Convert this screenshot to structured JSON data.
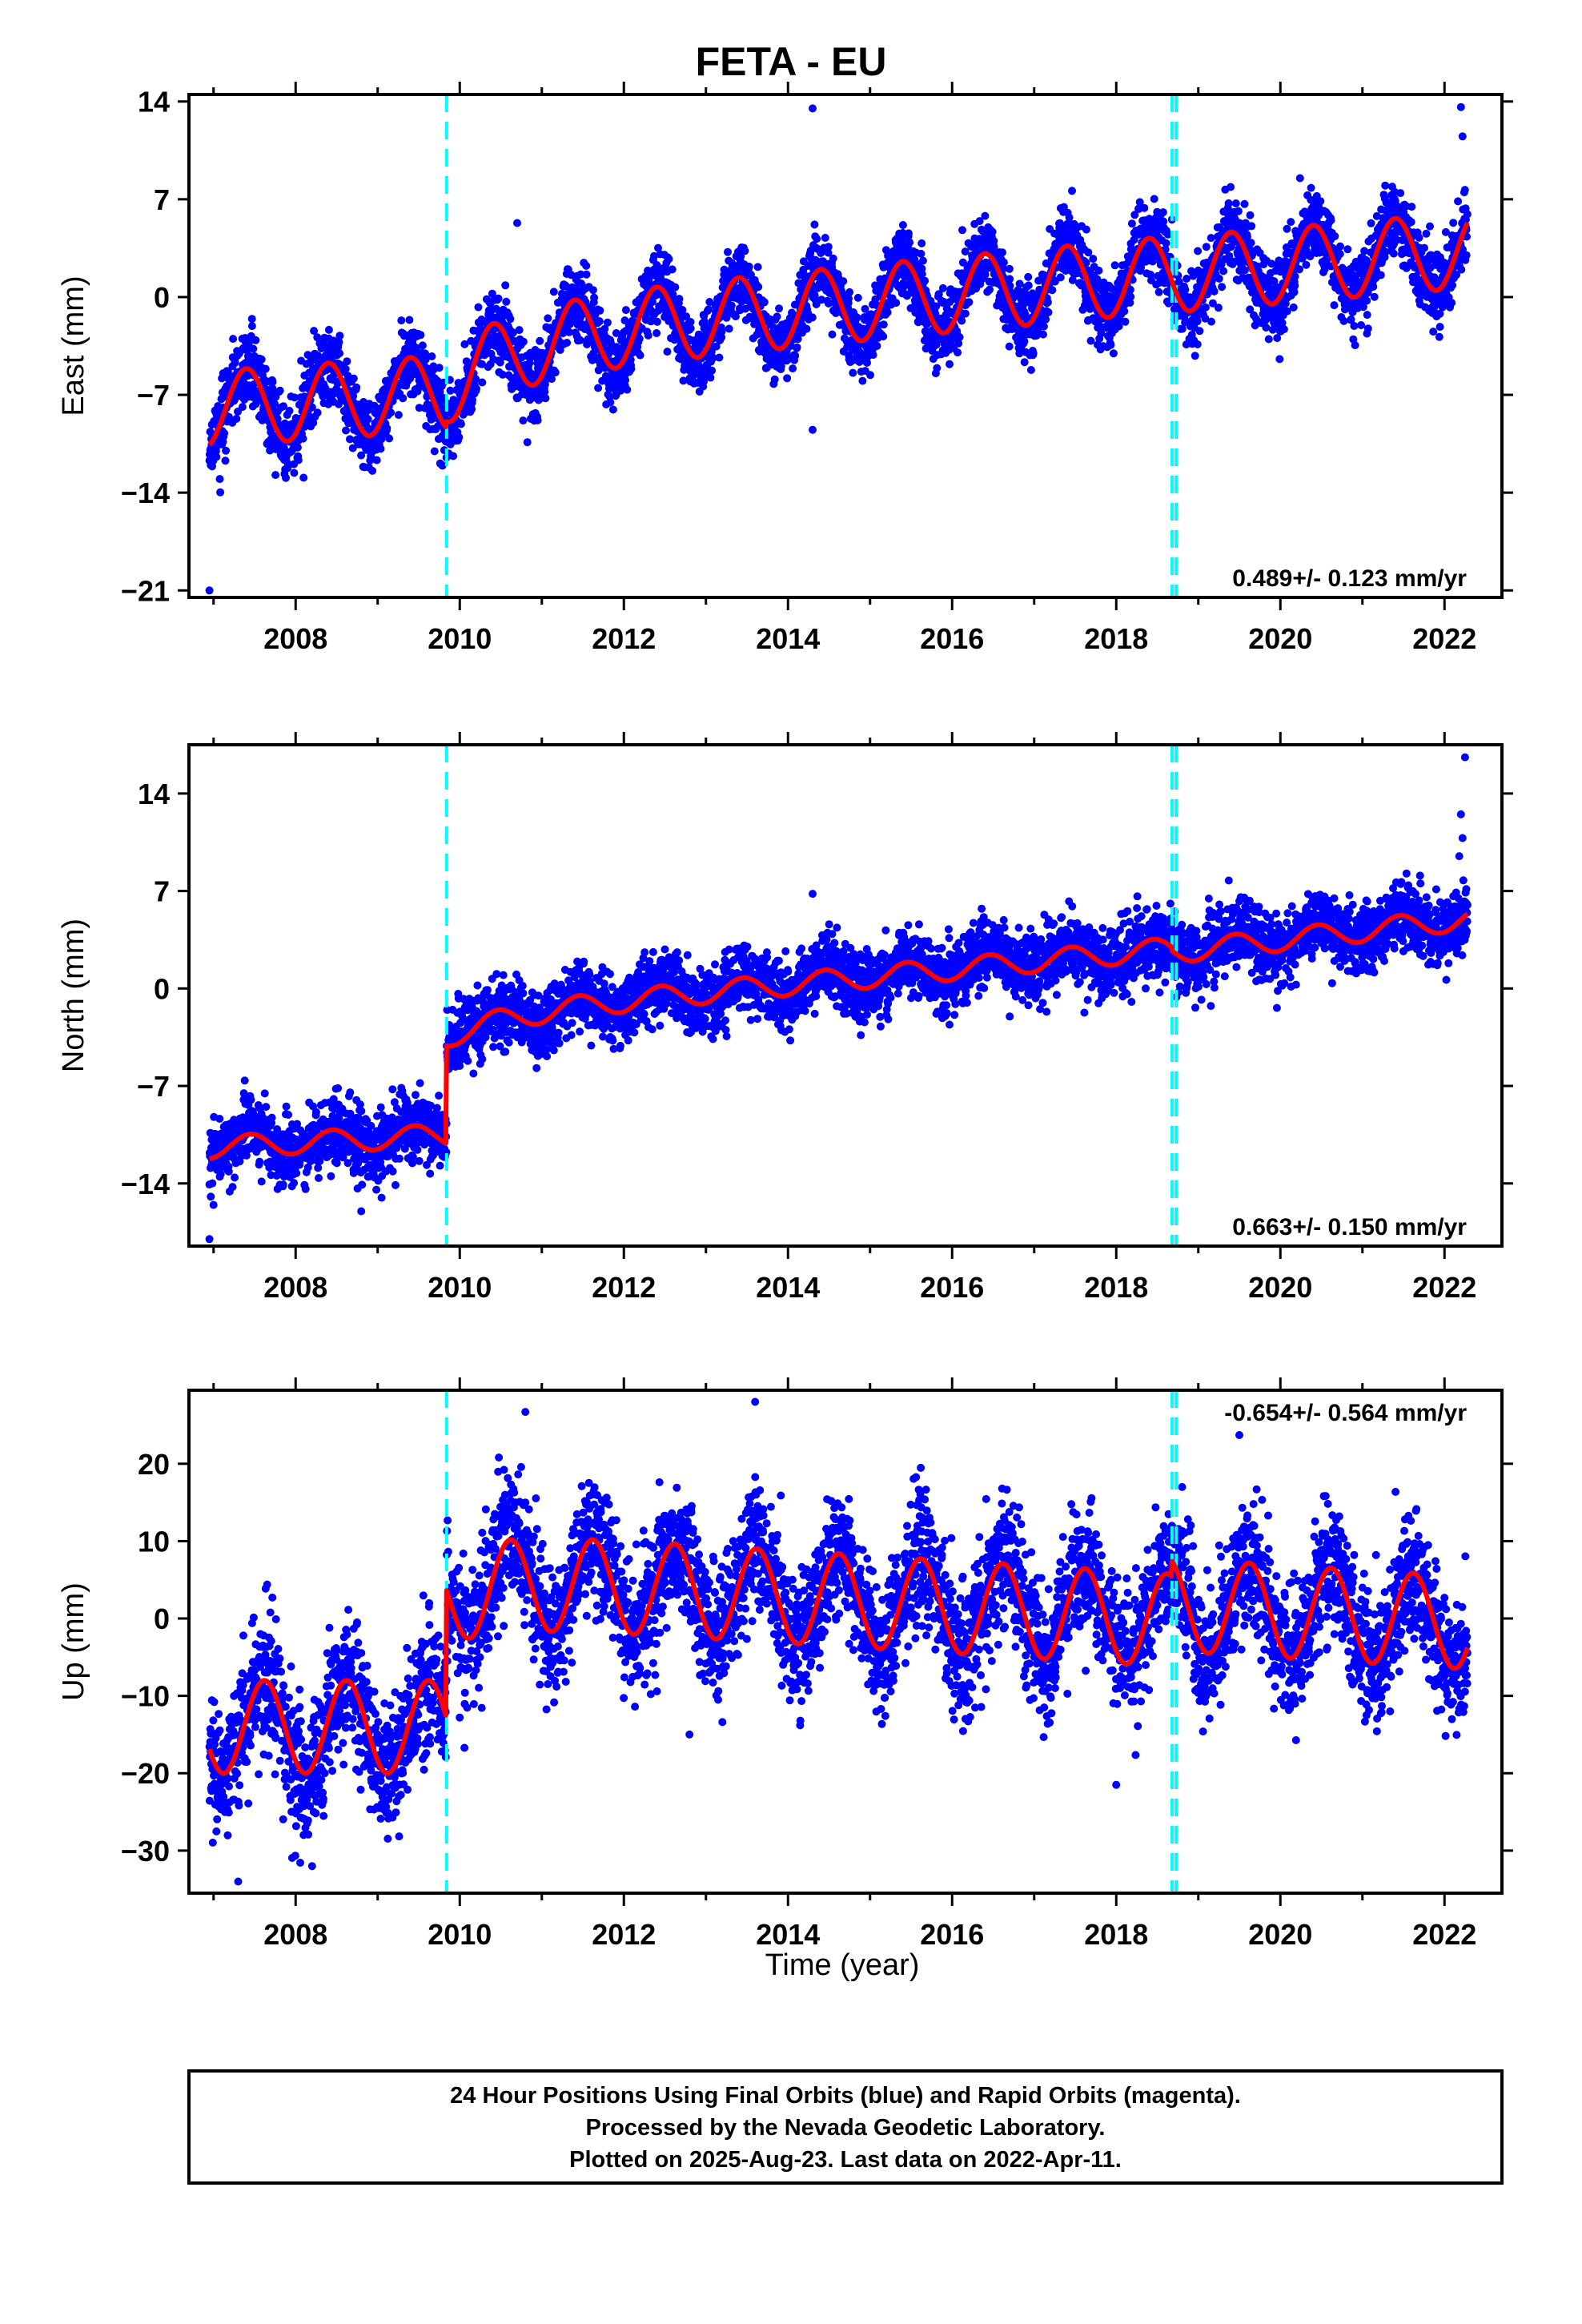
{
  "chart_data": {
    "type": "scatter",
    "title": "FETA - EU",
    "xlabel": "Time (year)",
    "colors": {
      "points": "#0000ff",
      "fit": "#ff0000",
      "offsets": "#00ffff",
      "axes": "#000000"
    },
    "x_ticks": [
      2008,
      2010,
      2012,
      2014,
      2016,
      2018,
      2020,
      2022
    ],
    "xlim": [
      2006.7,
      2022.7
    ],
    "offset_epochs": [
      2009.84,
      2018.68,
      2018.73
    ],
    "panels": [
      {
        "name": "east",
        "ylabel": "East (mm)",
        "ylim": [
          -21.5,
          14.5
        ],
        "y_ticks": [
          14,
          7,
          0,
          -7,
          -14,
          -21
        ],
        "rate_label": "0.489+/- 0.123 mm/yr",
        "rate_position": "bottom-right",
        "fit": {
          "segments": [
            {
              "start": 2006.95,
              "end": 2009.84,
              "offset": -8.0,
              "trend": 0.4,
              "amplitude": 2.7,
              "phase_peak": 0.4
            },
            {
              "start": 2009.84,
              "end": 2018.68,
              "offset": -3.2,
              "trend": 0.55,
              "amplitude": 2.7,
              "phase_peak": 0.4,
              "transient": {
                "amount": -3.2,
                "tau": 0.9
              }
            },
            {
              "start": 2018.68,
              "end": 2022.28,
              "offset": 1.6,
              "trend": 0.489,
              "amplitude": 2.7,
              "phase_peak": 0.4
            }
          ]
        },
        "scatter": {
          "sigma": 1.3,
          "seed": 11
        },
        "outliers": [
          {
            "x": 2006.95,
            "y": -21.0
          },
          {
            "x": 2014.3,
            "y": 13.5
          },
          {
            "x": 2014.3,
            "y": -9.5
          },
          {
            "x": 2022.2,
            "y": 13.6
          },
          {
            "x": 2022.22,
            "y": 11.5
          },
          {
            "x": 2010.7,
            "y": 5.3
          }
        ]
      },
      {
        "name": "north",
        "ylabel": "North (mm)",
        "ylim": [
          -18.5,
          17.5
        ],
        "y_ticks": [
          14,
          7,
          0,
          -7,
          -14
        ],
        "rate_label": "0.663+/- 0.150 mm/yr",
        "rate_position": "bottom-right",
        "fit": {
          "segments": [
            {
              "start": 2006.95,
              "end": 2009.84,
              "offset": -11.4,
              "trend": 0.3,
              "amplitude": 0.8,
              "phase_peak": 0.45
            },
            {
              "start": 2009.84,
              "end": 2018.68,
              "offset": -2.0,
              "trend": 0.55,
              "amplitude": 0.8,
              "phase_peak": 0.45,
              "transient": {
                "amount": -1.5,
                "tau": 0.8
              }
            },
            {
              "start": 2018.68,
              "end": 2022.28,
              "offset": 2.6,
              "trend": 0.663,
              "amplitude": 0.8,
              "phase_peak": 0.45
            }
          ]
        },
        "scatter": {
          "sigma": 1.2,
          "seed": 23
        },
        "outliers": [
          {
            "x": 2022.25,
            "y": 16.6
          },
          {
            "x": 2022.2,
            "y": 12.5
          },
          {
            "x": 2022.22,
            "y": 10.8
          },
          {
            "x": 2022.18,
            "y": 9.5
          },
          {
            "x": 2006.95,
            "y": -18.0
          },
          {
            "x": 2014.3,
            "y": 6.8
          },
          {
            "x": 2008.8,
            "y": -16.0
          }
        ]
      },
      {
        "name": "up",
        "ylabel": "Up (mm)",
        "ylim": [
          -35.5,
          29.5
        ],
        "y_ticks": [
          20,
          10,
          0,
          -10,
          -20,
          -30
        ],
        "rate_label": "-0.654+/- 0.564 mm/yr",
        "rate_position": "top-right",
        "fit": {
          "segments": [
            {
              "start": 2006.95,
              "end": 2009.84,
              "offset": -14.0,
              "trend": 0.0,
              "amplitude": 6.0,
              "phase_peak": 0.62
            },
            {
              "start": 2009.84,
              "end": 2018.68,
              "offset": 5.5,
              "trend": -0.65,
              "amplitude": 6.0,
              "phase_peak": 0.62,
              "transient": {
                "amount": -3.0,
                "tau": 0.6
              }
            },
            {
              "start": 2018.68,
              "end": 2022.28,
              "offset": 1.8,
              "trend": -0.654,
              "amplitude": 6.0,
              "phase_peak": 0.62
            }
          ]
        },
        "scatter": {
          "sigma": 4.3,
          "seed": 37
        },
        "outliers": [
          {
            "x": 2013.6,
            "y": 28.0
          },
          {
            "x": 2010.8,
            "y": 26.7
          },
          {
            "x": 2007.3,
            "y": -34.0
          },
          {
            "x": 2019.5,
            "y": 23.7
          },
          {
            "x": 2018.0,
            "y": -21.5
          },
          {
            "x": 2012.8,
            "y": -15.0
          },
          {
            "x": 2008.2,
            "y": -32.0
          }
        ]
      }
    ],
    "footer_lines": [
      "24 Hour Positions Using Final Orbits (blue) and Rapid Orbits (magenta).",
      "Processed by the Nevada Geodetic Laboratory.",
      "Plotted on 2025-Aug-23. Last data on 2022-Apr-11."
    ]
  }
}
